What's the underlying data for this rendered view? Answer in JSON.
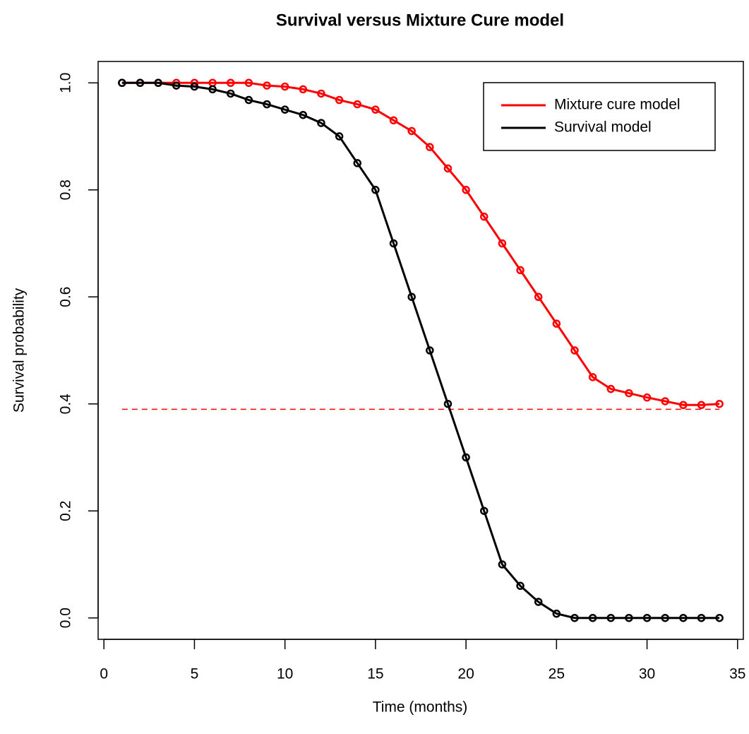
{
  "chart_data": {
    "type": "line",
    "title": "Survival versus Mixture Cure model",
    "xlabel": "Time (months)",
    "ylabel": "Survival probability",
    "x": [
      1,
      2,
      3,
      4,
      5,
      6,
      7,
      8,
      9,
      10,
      11,
      12,
      13,
      14,
      15,
      16,
      17,
      18,
      19,
      20,
      21,
      22,
      23,
      24,
      25,
      26,
      27,
      28,
      29,
      30,
      31,
      32,
      33,
      34
    ],
    "series": [
      {
        "name": "Mixture cure model",
        "color": "#ff0000",
        "values": [
          1.0,
          1.0,
          1.0,
          1.0,
          1.0,
          1.0,
          1.0,
          1.0,
          0.995,
          0.993,
          0.988,
          0.98,
          0.968,
          0.96,
          0.95,
          0.93,
          0.91,
          0.88,
          0.84,
          0.8,
          0.75,
          0.7,
          0.65,
          0.6,
          0.55,
          0.5,
          0.45,
          0.428,
          0.42,
          0.412,
          0.405,
          0.398,
          0.398,
          0.4
        ]
      },
      {
        "name": "Survival model",
        "color": "#000000",
        "values": [
          1.0,
          1.0,
          1.0,
          0.995,
          0.993,
          0.988,
          0.98,
          0.968,
          0.96,
          0.95,
          0.94,
          0.925,
          0.9,
          0.85,
          0.8,
          0.7,
          0.6,
          0.5,
          0.4,
          0.3,
          0.2,
          0.1,
          0.06,
          0.03,
          0.008,
          0,
          0,
          0,
          0,
          0,
          0,
          0,
          0,
          0
        ]
      }
    ],
    "reference_line": {
      "y": 0.39,
      "x": [
        1,
        34
      ],
      "color": "#ff0000",
      "dashed": true
    },
    "xlim": [
      -0.32,
      35.32
    ],
    "ylim": [
      -0.04,
      1.04
    ],
    "xticks": [
      0,
      5,
      10,
      15,
      20,
      25,
      30,
      35
    ],
    "yticks": [
      {
        "value": 0,
        "label": "0.0"
      },
      {
        "value": 0.2,
        "label": "0.2"
      },
      {
        "value": 0.4,
        "label": "0.4"
      },
      {
        "value": 0.6,
        "label": "0.6"
      },
      {
        "value": 0.8,
        "label": "0.8"
      },
      {
        "value": 1.0,
        "label": "1.0"
      }
    ],
    "legend": "top-right",
    "grid": false
  }
}
